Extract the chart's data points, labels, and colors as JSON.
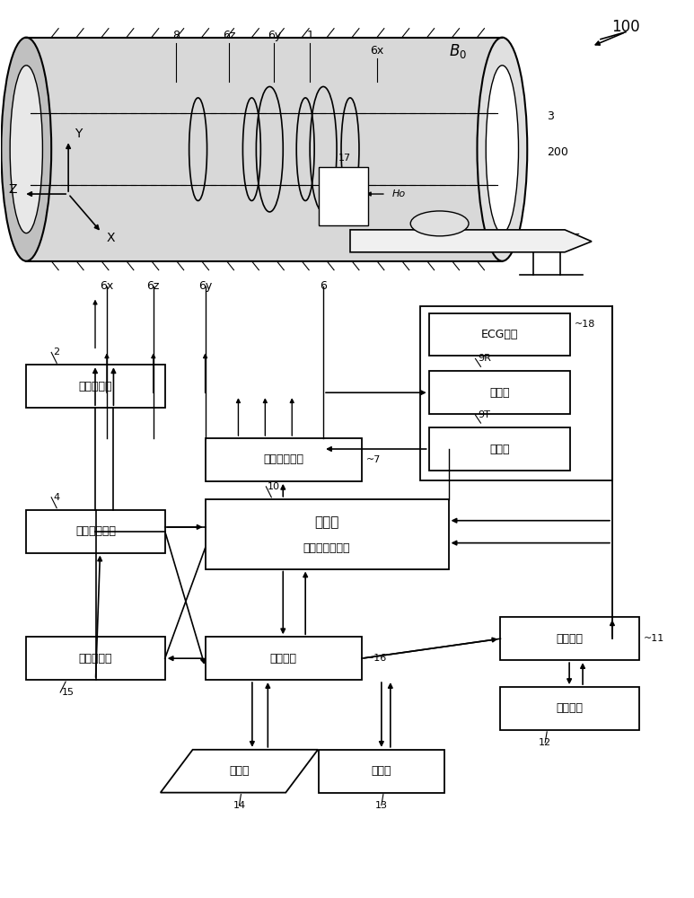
{
  "background_color": "#ffffff",
  "boxes": {
    "ecg": {
      "label": "ECG单元",
      "ref": "18",
      "ref_side": "right"
    },
    "recv": {
      "label": "接收器",
      "ref": "9R",
      "ref_side": "top"
    },
    "trans": {
      "label": "发送器",
      "ref": "9T",
      "ref_side": "top"
    },
    "grad": {
      "label": "倾斜磁场电源",
      "ref": "7",
      "ref_side": "right"
    },
    "seq": {
      "label": "定序器",
      "label2": "（顺序控制器）",
      "ref": "10",
      "ref_side": "top"
    },
    "main": {
      "label": "主计算机",
      "ref": "16",
      "ref_side": "right"
    },
    "sound": {
      "label": "声音发生器",
      "ref": "15",
      "ref_side": "bottom"
    },
    "shim": {
      "label": "勾场线圈电源",
      "ref": "4",
      "ref_side": "top"
    },
    "static": {
      "label": "静磁场电源",
      "ref": "2",
      "ref_side": "top"
    },
    "input": {
      "label": "输入器",
      "ref": "14",
      "ref_side": "bottom"
    },
    "display": {
      "label": "显示器",
      "ref": "13",
      "ref_side": "bottom"
    },
    "compute": {
      "label": "运算单元",
      "ref": "11",
      "ref_side": "right"
    },
    "storage": {
      "label": "存储单元",
      "ref": "12",
      "ref_side": "bottom"
    }
  }
}
